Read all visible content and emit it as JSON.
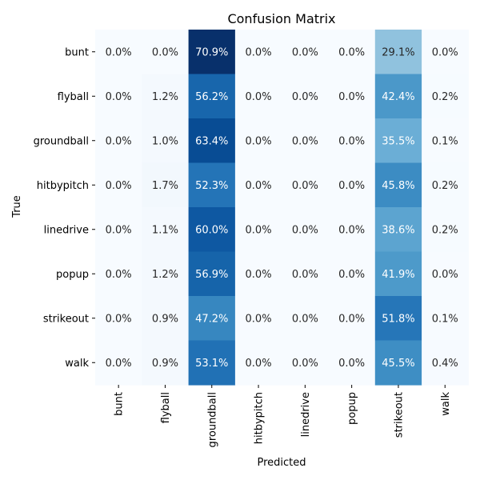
{
  "chart_data": {
    "type": "heatmap",
    "title": "Confusion Matrix",
    "xlabel": "Predicted",
    "ylabel": "True",
    "x_categories": [
      "bunt",
      "flyball",
      "groundball",
      "hitbypitch",
      "linedrive",
      "popup",
      "strikeout",
      "walk"
    ],
    "y_categories": [
      "bunt",
      "flyball",
      "groundball",
      "hitbypitch",
      "linedrive",
      "popup",
      "strikeout",
      "walk"
    ],
    "value_format": "percent_1dp",
    "colormap": "Blues",
    "vmin": 0,
    "vmax": 70.9,
    "values": [
      [
        0.0,
        0.0,
        70.9,
        0.0,
        0.0,
        0.0,
        29.1,
        0.0
      ],
      [
        0.0,
        1.2,
        56.2,
        0.0,
        0.0,
        0.0,
        42.4,
        0.2
      ],
      [
        0.0,
        1.0,
        63.4,
        0.0,
        0.0,
        0.0,
        35.5,
        0.1
      ],
      [
        0.0,
        1.7,
        52.3,
        0.0,
        0.0,
        0.0,
        45.8,
        0.2
      ],
      [
        0.0,
        1.1,
        60.0,
        0.0,
        0.0,
        0.0,
        38.6,
        0.2
      ],
      [
        0.0,
        1.2,
        56.9,
        0.0,
        0.0,
        0.0,
        41.9,
        0.0
      ],
      [
        0.0,
        0.9,
        47.2,
        0.0,
        0.0,
        0.0,
        51.8,
        0.1
      ],
      [
        0.0,
        0.9,
        53.1,
        0.0,
        0.0,
        0.0,
        45.5,
        0.4
      ]
    ],
    "colors": {
      "light_text": "#ffffff",
      "dark_text": "#262626"
    }
  }
}
